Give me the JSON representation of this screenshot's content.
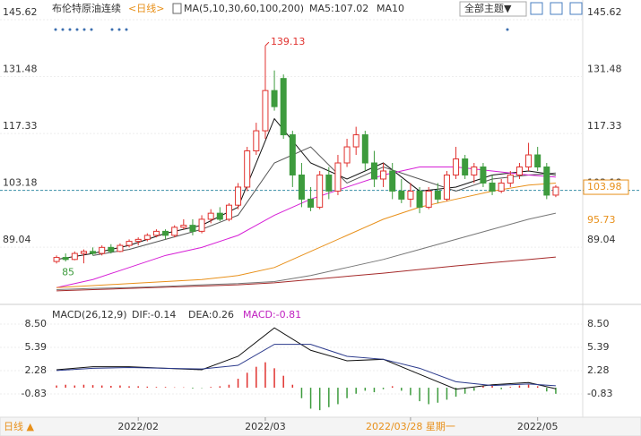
{
  "header": {
    "title": "布伦特原油连续",
    "period": "<日线>",
    "ma_params": "MA(5,10,30,60,100,200)",
    "ma5": "MA5:107.02",
    "ma10": "MA10",
    "theme_button": "全部主题▼"
  },
  "footer": {
    "period_button": "日线 ▲"
  },
  "chart_data": [
    {
      "type": "candlestick",
      "open": [
        85.5,
        86.5,
        86,
        87.5,
        88,
        87.5,
        89,
        88,
        89.5,
        90.5,
        91,
        92,
        93,
        92,
        94,
        94.5,
        93,
        96,
        97.5,
        96,
        99.5,
        104,
        113,
        118,
        128,
        131,
        117,
        107,
        101,
        99,
        107,
        103,
        110,
        114,
        117,
        110,
        106,
        108,
        103,
        101,
        103,
        99,
        103,
        101,
        107,
        111,
        107,
        109,
        105,
        103,
        105,
        107,
        109,
        112,
        109,
        102
      ],
      "high": [
        87,
        87.5,
        88,
        88.5,
        89,
        89.5,
        89.8,
        90,
        91,
        91.5,
        92.5,
        93.5,
        93.5,
        94.5,
        96,
        96,
        97,
        98.5,
        99,
        100,
        105,
        114,
        120,
        139.13,
        133,
        132,
        118,
        110,
        104,
        108,
        109,
        112,
        116,
        119,
        118,
        113,
        110,
        110,
        106,
        105,
        104,
        104,
        105,
        108,
        114,
        112,
        110,
        110,
        107,
        106,
        108,
        110,
        115,
        114,
        110,
        104.5
      ],
      "low": [
        85,
        85.5,
        85.8,
        85.04,
        87,
        87,
        87.5,
        87.8,
        89,
        89.5,
        90.5,
        91.5,
        91,
        91.5,
        93.5,
        92,
        92.5,
        95,
        95.5,
        95.5,
        98.5,
        103,
        112,
        116,
        123,
        116,
        104,
        99,
        98,
        98.5,
        101,
        102,
        109,
        112,
        108,
        104,
        104,
        101,
        100,
        99,
        97.5,
        98.5,
        100,
        100.5,
        106,
        106,
        105,
        104,
        102,
        102.5,
        104,
        106,
        108,
        108,
        101,
        101.5
      ],
      "close": [
        86.5,
        86,
        87.5,
        88,
        87.5,
        89,
        88,
        89.5,
        90.5,
        91,
        92,
        93,
        92,
        94,
        94.5,
        93,
        96,
        97.5,
        96,
        99.5,
        104,
        113,
        118,
        128,
        124,
        117,
        107,
        101,
        99,
        107,
        103,
        110,
        114,
        117,
        110,
        106,
        108,
        103,
        101,
        103,
        99,
        103,
        101,
        107,
        111,
        107,
        109,
        105,
        103,
        105,
        107,
        109,
        112,
        109,
        102,
        103.98
      ],
      "series": [
        {
          "color": "#111111",
          "x": [
            0,
            4,
            8,
            12,
            16,
            20,
            24,
            28,
            32,
            36,
            40,
            44,
            48,
            52,
            55
          ],
          "values": [
            86,
            87.5,
            89.5,
            92.5,
            94.5,
            99,
            121,
            110,
            106,
            110,
            103,
            104,
            107,
            108,
            107.02
          ]
        },
        {
          "color": "#555555",
          "x": [
            4,
            8,
            12,
            16,
            20,
            24,
            28,
            32,
            36,
            40,
            44,
            48,
            52,
            55
          ],
          "values": [
            87,
            88.5,
            91,
            93.5,
            97,
            110,
            114,
            105,
            109,
            106,
            103,
            106,
            107,
            107.5
          ]
        },
        {
          "color": "#d61fd6",
          "x": [
            0,
            4,
            8,
            12,
            16,
            20,
            24,
            28,
            32,
            36,
            40,
            44,
            48,
            52,
            55
          ],
          "values": [
            79,
            81,
            84,
            87,
            89,
            92,
            97,
            101,
            104,
            107,
            109,
            109,
            108,
            107,
            106.5
          ]
        },
        {
          "color": "#e8901a",
          "x": [
            0,
            4,
            8,
            12,
            16,
            20,
            24,
            28,
            32,
            36,
            40,
            44,
            48,
            52,
            55
          ],
          "values": [
            79,
            79.5,
            80,
            80.5,
            81,
            82,
            84,
            88,
            92,
            96,
            99,
            101,
            103,
            104.5,
            105
          ]
        },
        {
          "color": "#777777",
          "x": [
            0,
            4,
            8,
            12,
            16,
            20,
            24,
            28,
            32,
            36,
            40,
            44,
            48,
            52,
            55
          ],
          "values": [
            78.5,
            78.8,
            79,
            79.3,
            79.7,
            80,
            80.5,
            82,
            84,
            86,
            88.5,
            91,
            93.5,
            96,
            97.5
          ]
        },
        {
          "color": "#a52a2a",
          "x": [
            0,
            4,
            8,
            12,
            16,
            20,
            24,
            28,
            32,
            36,
            40,
            44,
            48,
            52,
            55
          ],
          "values": [
            78.2,
            78.5,
            78.8,
            79.1,
            79.4,
            79.7,
            80.2,
            81,
            81.8,
            82.6,
            83.5,
            84.4,
            85.2,
            86,
            86.6
          ]
        }
      ],
      "marker_labels": [
        95.73
      ],
      "xlim": [
        -0.5,
        55.5
      ],
      "ylim": [
        77.5,
        147.4
      ],
      "yticks": [
        145.62,
        131.48,
        117.33,
        103.18,
        89.04
      ]
    },
    {
      "type": "macd",
      "title": "MACD(26,12,9)",
      "dif_label": "DIF:-0.14",
      "dea_label": "DEA:0.26",
      "macd_label": "MACD:-0.81",
      "histogram": [
        0.3,
        0.4,
        0.3,
        0.4,
        0.35,
        0.3,
        0.25,
        0.3,
        0.2,
        0.2,
        0.15,
        0.1,
        0.1,
        0.05,
        0.05,
        -0.1,
        -0.05,
        0.1,
        0.2,
        0.4,
        1.2,
        2.0,
        2.8,
        3.4,
        2.6,
        1.6,
        0.4,
        -1.4,
        -2.8,
        -3.0,
        -2.6,
        -2.2,
        -1.4,
        -0.8,
        -0.4,
        -0.6,
        -0.2,
        0.2,
        -0.4,
        -1.0,
        -1.8,
        -2.2,
        -2.0,
        -1.6,
        -1.2,
        -0.8,
        -0.4,
        0.2,
        0.3,
        -0.2,
        0.1,
        0.3,
        0.4,
        0.2,
        -0.5,
        -0.81
      ],
      "series": [
        {
          "color": "#111111",
          "x": [
            0,
            4,
            8,
            12,
            16,
            20,
            24,
            28,
            32,
            36,
            40,
            44,
            48,
            52,
            55
          ],
          "values": [
            2.4,
            2.8,
            2.8,
            2.6,
            2.4,
            4.2,
            8.0,
            5.0,
            3.6,
            3.8,
            1.8,
            -0.2,
            0.4,
            0.7,
            -0.14
          ]
        },
        {
          "color": "#2b3a8c",
          "x": [
            0,
            4,
            8,
            12,
            16,
            20,
            24,
            28,
            32,
            36,
            40,
            44,
            48,
            52,
            55
          ],
          "values": [
            2.3,
            2.6,
            2.7,
            2.6,
            2.5,
            3.0,
            5.8,
            5.8,
            4.2,
            3.8,
            2.6,
            0.8,
            0.3,
            0.5,
            0.26
          ]
        }
      ],
      "xlim": [
        -0.5,
        55.5
      ],
      "ylim": [
        -3.94,
        9.94
      ],
      "yticks": [
        {
          "value": 8.5,
          "label": "8.50"
        },
        5.39,
        2.28,
        -0.83
      ],
      "xticks": [
        {
          "value": 9,
          "label": "2022/02"
        },
        {
          "value": 23,
          "label": "2022/03"
        },
        {
          "value": 39,
          "label": "2022/03/28 星期一"
        },
        {
          "value": 53,
          "label": "2022/05"
        }
      ]
    }
  ]
}
